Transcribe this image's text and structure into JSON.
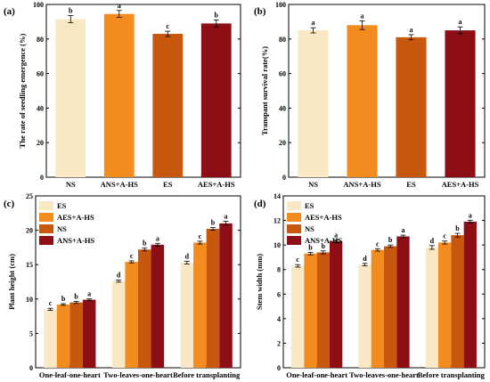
{
  "figure": {
    "colors": [
      "#FAE7C4",
      "#F28C1E",
      "#C8580E",
      "#8E0E15"
    ],
    "err_color": "#000000"
  },
  "chart_data": [
    {
      "panel": "(a)",
      "type": "bar",
      "ylabel": "The rate of seedling emergence (%)",
      "xlabel": "",
      "ylim": [
        0,
        100
      ],
      "yticks": [
        0,
        20,
        40,
        60,
        80,
        100
      ],
      "categories": [
        "NS",
        "ANS+A-HS",
        "ES",
        "AES+A-HS"
      ],
      "values": [
        91.5,
        94.5,
        83.0,
        89.0
      ],
      "errors": [
        2.0,
        2.0,
        1.5,
        2.0
      ],
      "letters": [
        "b",
        "a",
        "c",
        "b"
      ],
      "color_index": [
        0,
        1,
        2,
        3
      ],
      "grid": false,
      "legend": "none"
    },
    {
      "panel": "(b)",
      "type": "bar",
      "ylabel": "Transpant survival rate(%)",
      "xlabel": "",
      "ylim": [
        0,
        100
      ],
      "yticks": [
        0,
        20,
        40,
        60,
        80,
        100
      ],
      "categories": [
        "NS",
        "ANS+A-HS",
        "ES",
        "AES+A-HS"
      ],
      "values": [
        85.0,
        88.0,
        81.0,
        85.0
      ],
      "errors": [
        1.5,
        2.5,
        1.5,
        2.0
      ],
      "letters": [
        "a",
        "a",
        "a",
        "a"
      ],
      "color_index": [
        0,
        1,
        2,
        3
      ],
      "grid": false,
      "legend": "none"
    },
    {
      "panel": "(c)",
      "type": "bar",
      "ylabel": "Plant height (cm)",
      "xlabel": "",
      "ylim": [
        0,
        25
      ],
      "yticks": [
        0,
        5,
        10,
        15,
        20,
        25
      ],
      "categories": [
        "One-leaf-one-heart",
        "Two-leaves-one-heart",
        "Before transplanting"
      ],
      "series": [
        {
          "name": "ES",
          "values": [
            8.5,
            12.6,
            15.3
          ],
          "errors": [
            0.15,
            0.15,
            0.2
          ],
          "letters": [
            "c",
            "d",
            "d"
          ]
        },
        {
          "name": "AES+A-HS",
          "values": [
            9.2,
            15.4,
            18.2
          ],
          "errors": [
            0.12,
            0.15,
            0.2
          ],
          "letters": [
            "b",
            "c",
            "c"
          ]
        },
        {
          "name": "NS",
          "values": [
            9.5,
            17.2,
            20.2
          ],
          "errors": [
            0.15,
            0.2,
            0.2
          ],
          "letters": [
            "b",
            "b",
            "b"
          ]
        },
        {
          "name": "ANS+A-HS",
          "values": [
            9.9,
            17.9,
            21.0
          ],
          "errors": [
            0.12,
            0.2,
            0.3
          ],
          "letters": [
            "a",
            "a",
            "a"
          ]
        }
      ],
      "grid": false,
      "legend": "top-left"
    },
    {
      "panel": "(d)",
      "type": "bar",
      "ylabel": "Stem width (mm)",
      "xlabel": "",
      "ylim": [
        0,
        14
      ],
      "yticks": [
        0,
        2,
        4,
        6,
        8,
        10,
        12,
        14
      ],
      "categories": [
        "One-leaf-one-heart",
        "Two-leaves-one-heart",
        "Before transplanting"
      ],
      "series": [
        {
          "name": "ES",
          "values": [
            8.3,
            8.4,
            9.8
          ],
          "errors": [
            0.1,
            0.1,
            0.15
          ],
          "letters": [
            "c",
            "d",
            "d"
          ]
        },
        {
          "name": "AES+A-HS",
          "values": [
            9.3,
            9.6,
            10.2
          ],
          "errors": [
            0.1,
            0.1,
            0.12
          ],
          "letters": [
            "b",
            "c",
            "c"
          ]
        },
        {
          "name": "NS",
          "values": [
            9.4,
            9.9,
            10.8
          ],
          "errors": [
            0.12,
            0.1,
            0.15
          ],
          "letters": [
            "b",
            "b",
            "b"
          ]
        },
        {
          "name": "ANS+A-HS",
          "values": [
            10.3,
            10.7,
            11.9
          ],
          "errors": [
            0.1,
            0.1,
            0.12
          ],
          "letters": [
            "a",
            "a",
            "a"
          ]
        }
      ],
      "grid": false,
      "legend": "top-left"
    }
  ]
}
